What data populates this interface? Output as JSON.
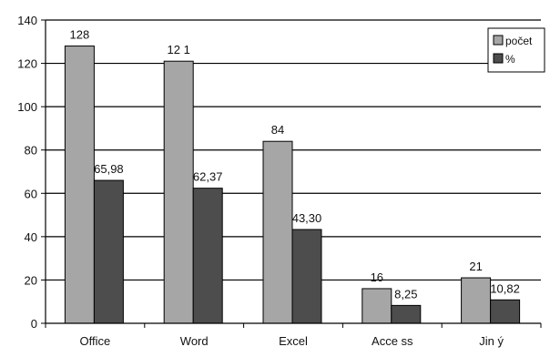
{
  "chart_data": {
    "type": "bar",
    "categories": [
      "Office",
      "Word",
      "Excel",
      "Access",
      "Jiný"
    ],
    "category_labels": [
      "Office",
      "Word",
      "Excel",
      "Acce ss",
      "Jin ý"
    ],
    "series": [
      {
        "name": "počet",
        "values": [
          128,
          121,
          84,
          16,
          21
        ],
        "labels": [
          "128",
          "12 1",
          "84",
          "16",
          "21"
        ],
        "color": "#a6a6a6"
      },
      {
        "name": "%",
        "values": [
          65.98,
          62.37,
          43.3,
          8.25,
          10.82
        ],
        "labels": [
          "65,98",
          "62,37",
          "43,30",
          "8,25",
          "10,82"
        ],
        "color": "#4d4d4d"
      }
    ],
    "ylim": [
      0,
      140
    ],
    "yticks": [
      0,
      20,
      40,
      60,
      80,
      100,
      120,
      140
    ],
    "grid": true,
    "legend_position": "top-right",
    "title": "",
    "xlabel": "",
    "ylabel": ""
  }
}
